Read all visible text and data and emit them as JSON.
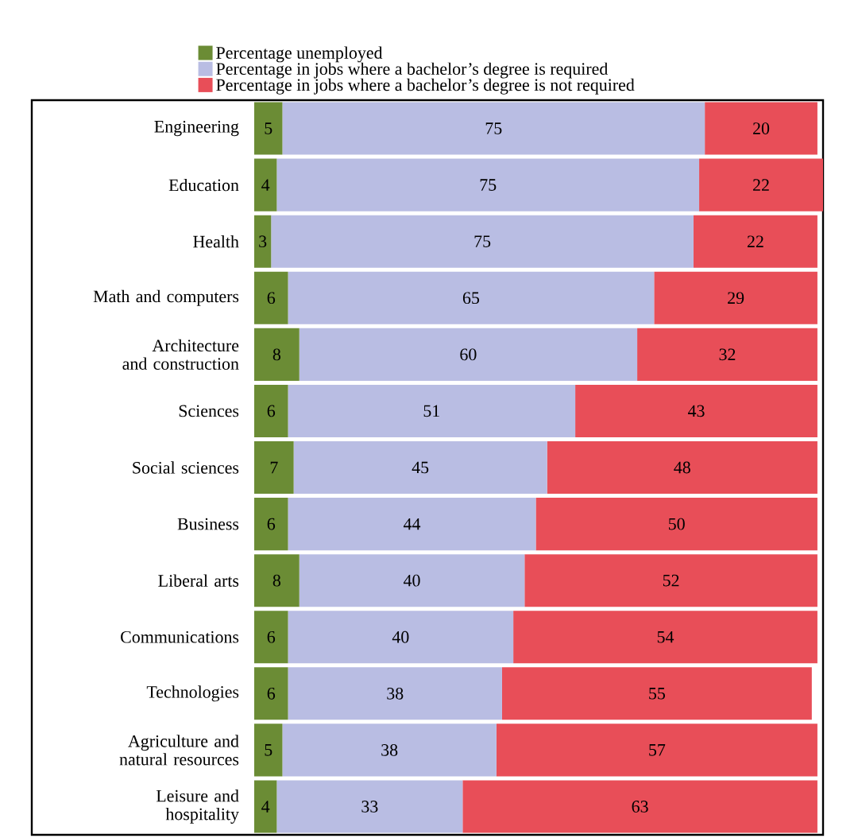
{
  "chart_data": {
    "type": "bar",
    "orientation": "horizontal",
    "stacked": true,
    "data_labels": true,
    "legend": "top",
    "categories": [
      "Engineering",
      "Education",
      "Health",
      "Math and computers",
      "Architecture and construction",
      "Sciences",
      "Social sciences",
      "Business",
      "Liberal arts",
      "Communications",
      "Technologies",
      "Agriculture and natural resources",
      "Leisure and hospitality"
    ],
    "series": [
      {
        "name": "Percentage unemployed",
        "color": "#6b8c35",
        "values": [
          5,
          4,
          3,
          6,
          8,
          6,
          7,
          6,
          8,
          6,
          6,
          5,
          4
        ]
      },
      {
        "name": "Percentage in jobs where a bachelor’s degree is required",
        "color": "#b9bde3",
        "values": [
          75,
          75,
          75,
          65,
          60,
          51,
          45,
          44,
          40,
          40,
          38,
          38,
          33
        ]
      },
      {
        "name": "Percentage in jobs where a bachelor’s degree is not required",
        "color": "#e84e58",
        "values": [
          20,
          22,
          22,
          29,
          32,
          43,
          48,
          50,
          52,
          54,
          55,
          57,
          63
        ]
      }
    ]
  }
}
